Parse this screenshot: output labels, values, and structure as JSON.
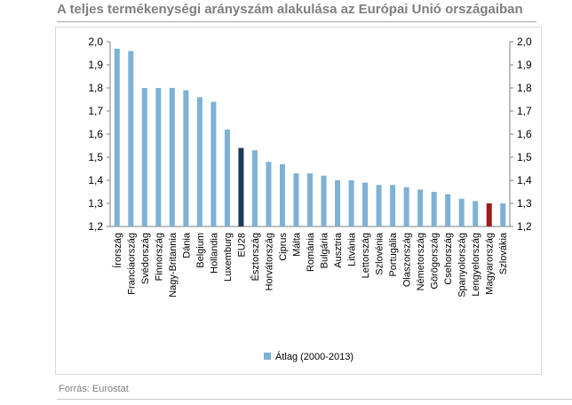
{
  "title": "A teljes termékenységi arányszám alakulása az Európai Unió országaiban",
  "source": "Forrás: Eurostat",
  "colors": {
    "bar": "#7eb1d6",
    "eu28": "#1f3b57",
    "hungary": "#9c1c1c",
    "axis": "#7f7f7f",
    "text": "#000000"
  },
  "chart_data": {
    "type": "bar",
    "title": "",
    "xlabel": "",
    "ylabel": "",
    "ylim": [
      1.2,
      2.0
    ],
    "yticks": [
      "1,2",
      "1,3",
      "1,4",
      "1,5",
      "1,6",
      "1,7",
      "1,8",
      "1,9",
      "2,0"
    ],
    "grid": false,
    "legend_position": "bottom",
    "categories": [
      "Írország",
      "Franciaország",
      "Svédország",
      "Finnország",
      "Nagy-Britannia",
      "Dánia",
      "Belgium",
      "Hollandia",
      "Luxemburg",
      "EU28",
      "Észtország",
      "Horvátország",
      "Ciprus",
      "Málta",
      "Románia",
      "Bulgária",
      "Ausztria",
      "Litvánia",
      "Lettország",
      "Szlovénia",
      "Portugália",
      "Olaszország",
      "Németország",
      "Görögország",
      "Csehország",
      "Spanyolország",
      "Lengyelország",
      "Magyarország",
      "Szlovákia"
    ],
    "series": [
      {
        "name": "Átlag (2000-2013)",
        "values": [
          1.97,
          1.96,
          1.8,
          1.8,
          1.8,
          1.79,
          1.76,
          1.74,
          1.62,
          1.54,
          1.53,
          1.48,
          1.47,
          1.43,
          1.43,
          1.42,
          1.4,
          1.4,
          1.39,
          1.38,
          1.38,
          1.37,
          1.36,
          1.35,
          1.34,
          1.32,
          1.31,
          1.3,
          1.3
        ]
      }
    ],
    "highlight": {
      "EU28": "eu28",
      "Magyarország": "hungary"
    }
  }
}
